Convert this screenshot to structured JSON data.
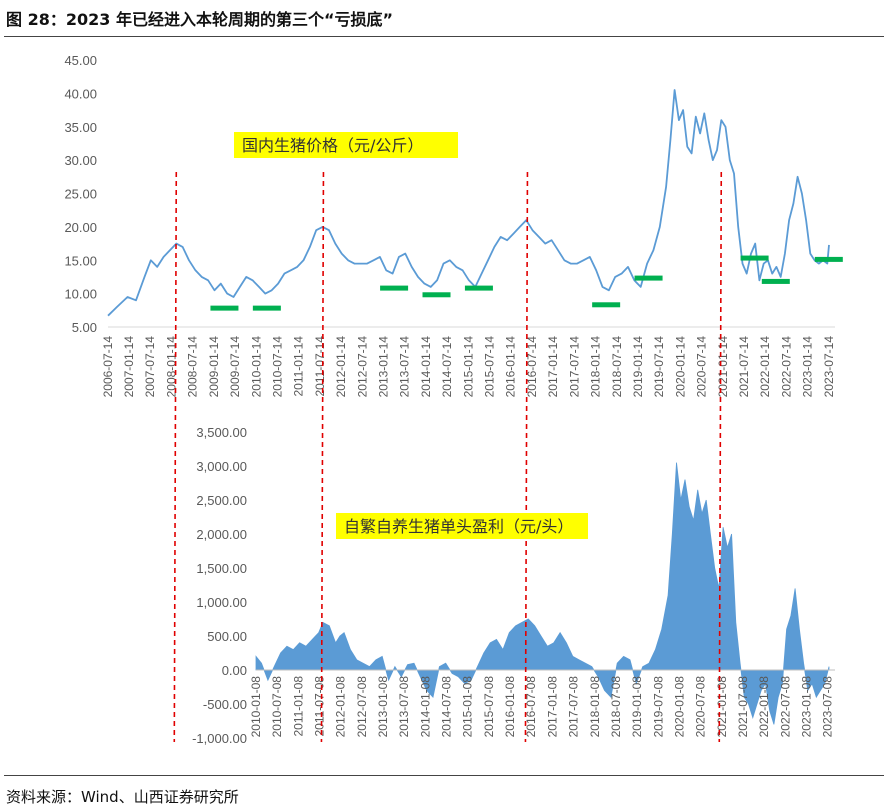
{
  "figure": {
    "title": "图 28：2023 年已经进入本轮周期的第三个“亏损底”",
    "source": "资料来源：Wind、山西证券研究所"
  },
  "colors": {
    "line": "#5b9bd5",
    "area": "#5b9bd5",
    "marker": "#00b050",
    "divider": "#e00000",
    "highlight": "#ffff00"
  },
  "chart_data": [
    {
      "type": "line",
      "annotation": "国内生猪价格（元/公斤）",
      "ylim": [
        5,
        45
      ],
      "yticks": [
        "5.00",
        "10.00",
        "15.00",
        "20.00",
        "25.00",
        "30.00",
        "35.00",
        "40.00",
        "45.00"
      ],
      "xticks": [
        "2006-07-14",
        "2007-01-14",
        "2007-07-14",
        "2008-01-14",
        "2008-07-14",
        "2009-01-14",
        "2009-07-14",
        "2010-01-14",
        "2010-07-14",
        "2011-01-14",
        "2011-07-14",
        "2012-01-14",
        "2012-07-14",
        "2013-01-14",
        "2013-07-14",
        "2014-01-14",
        "2014-07-14",
        "2015-01-14",
        "2015-07-14",
        "2016-01-14",
        "2016-07-14",
        "2017-01-14",
        "2017-07-14",
        "2018-01-14",
        "2018-07-14",
        "2019-01-14",
        "2019-07-14",
        "2020-01-14",
        "2020-07-14",
        "2021-01-14",
        "2021-07-14",
        "2022-01-14",
        "2022-07-14",
        "2023-01-14",
        "2023-07-14"
      ],
      "series": [
        {
          "x": [
            2006.54,
            2006.75,
            2007.0,
            2007.2,
            2007.4,
            2007.55,
            2007.7,
            2007.85,
            2008.0,
            2008.15,
            2008.3,
            2008.45,
            2008.6,
            2008.75,
            2008.9,
            2009.05,
            2009.2,
            2009.35,
            2009.5,
            2009.65,
            2009.8,
            2009.95,
            2010.1,
            2010.25,
            2010.4,
            2010.55,
            2010.7,
            2010.85,
            2011.0,
            2011.15,
            2011.3,
            2011.45,
            2011.6,
            2011.75,
            2011.9,
            2012.05,
            2012.2,
            2012.35,
            2012.5,
            2012.65,
            2012.8,
            2012.95,
            2013.1,
            2013.25,
            2013.4,
            2013.55,
            2013.7,
            2013.85,
            2014.0,
            2014.15,
            2014.3,
            2014.45,
            2014.6,
            2014.75,
            2014.9,
            2015.05,
            2015.2,
            2015.35,
            2015.5,
            2015.65,
            2015.8,
            2015.95,
            2016.1,
            2016.25,
            2016.4,
            2016.55,
            2016.7,
            2016.85,
            2017.0,
            2017.15,
            2017.3,
            2017.45,
            2017.6,
            2017.75,
            2017.9,
            2018.05,
            2018.2,
            2018.35,
            2018.5,
            2018.65,
            2018.8,
            2018.95,
            2019.1,
            2019.25,
            2019.4,
            2019.55,
            2019.7,
            2019.8,
            2019.9,
            2020.0,
            2020.1,
            2020.2,
            2020.3,
            2020.4,
            2020.5,
            2020.6,
            2020.7,
            2020.8,
            2020.9,
            2021.0,
            2021.1,
            2021.2,
            2021.3,
            2021.4,
            2021.5,
            2021.6,
            2021.7,
            2021.8,
            2021.9,
            2022.0,
            2022.1,
            2022.2,
            2022.3,
            2022.4,
            2022.5,
            2022.6,
            2022.7,
            2022.8,
            2022.9,
            2023.0,
            2023.1,
            2023.2,
            2023.3,
            2023.4,
            2023.5,
            2023.54
          ],
          "y": [
            6.7,
            8.0,
            9.5,
            9.0,
            12.5,
            15.0,
            14.0,
            15.5,
            16.5,
            17.5,
            17.0,
            15.0,
            13.5,
            12.5,
            12.0,
            10.5,
            11.5,
            10.0,
            9.5,
            11.0,
            12.5,
            12.0,
            11.0,
            10.0,
            10.5,
            11.5,
            13.0,
            13.5,
            14.0,
            15.0,
            17.0,
            19.5,
            20.0,
            19.5,
            17.5,
            16.0,
            15.0,
            14.5,
            14.5,
            14.5,
            15.0,
            15.5,
            13.5,
            13.0,
            15.5,
            16.0,
            14.0,
            12.5,
            11.5,
            11.0,
            12.0,
            14.5,
            15.0,
            14.0,
            13.5,
            12.0,
            11.0,
            13.0,
            15.0,
            17.0,
            18.5,
            18.0,
            19.0,
            20.0,
            21.0,
            19.5,
            18.5,
            17.5,
            18.0,
            16.5,
            15.0,
            14.5,
            14.5,
            15.0,
            15.5,
            13.5,
            11.0,
            10.5,
            12.5,
            13.0,
            14.0,
            12.0,
            11.0,
            14.5,
            16.5,
            20.0,
            26.0,
            33.0,
            40.5,
            36.0,
            37.5,
            32.0,
            31.0,
            36.5,
            34.0,
            37.0,
            33.0,
            30.0,
            31.5,
            36.0,
            35.0,
            30.0,
            28.0,
            20.0,
            14.5,
            13.0,
            16.0,
            17.5,
            12.0,
            14.5,
            15.0,
            13.0,
            14.0,
            12.5,
            16.0,
            21.0,
            23.5,
            27.5,
            25.0,
            21.0,
            16.0,
            15.0,
            14.5,
            15.0,
            14.5,
            17.3
          ]
        }
      ],
      "lows": [
        [
          "2009-01",
          "2009-07"
        ],
        [
          "2010-01",
          "2010-07"
        ],
        [
          "2013-01",
          "2013-07"
        ],
        [
          "2014-01",
          "2014-07"
        ],
        [
          "2015-01",
          "2015-07"
        ],
        [
          "2018-01",
          "2018-07"
        ],
        [
          "2019-01",
          "2019-07"
        ],
        [
          "2021-07",
          "2022-01"
        ],
        [
          "2022-01",
          "2022-07"
        ],
        [
          "2023-07",
          "2023-07"
        ]
      ]
    },
    {
      "type": "area",
      "annotation": "自繁自养生猪单头盈利（元/头）",
      "ylim": [
        -1000,
        3500
      ],
      "yticks": [
        "-1,000.00",
        "-500.00",
        "0.00",
        "500.00",
        "1,000.00",
        "1,500.00",
        "2,000.00",
        "2,500.00",
        "3,000.00",
        "3,500.00"
      ],
      "xticks": [
        "2010-01-08",
        "2010-07-08",
        "2011-01-08",
        "2011-07-08",
        "2012-01-08",
        "2012-07-08",
        "2013-01-08",
        "2013-07-08",
        "2014-01-08",
        "2014-07-08",
        "2015-01-08",
        "2015-07-08",
        "2016-01-08",
        "2016-07-08",
        "2017-01-08",
        "2017-07-08",
        "2018-01-08",
        "2018-07-08",
        "2019-01-08",
        "2019-07-08",
        "2020-01-08",
        "2020-07-08",
        "2021-01-08",
        "2021-07-08",
        "2022-01-08",
        "2022-07-08",
        "2023-01-08",
        "2023-07-08"
      ],
      "series": [
        {
          "x": [
            2010.02,
            2010.15,
            2010.3,
            2010.45,
            2010.6,
            2010.75,
            2010.9,
            2011.05,
            2011.2,
            2011.35,
            2011.5,
            2011.6,
            2011.75,
            2011.9,
            2012.0,
            2012.1,
            2012.25,
            2012.4,
            2012.55,
            2012.7,
            2012.85,
            2013.0,
            2013.15,
            2013.3,
            2013.45,
            2013.6,
            2013.75,
            2013.9,
            2014.05,
            2014.2,
            2014.35,
            2014.5,
            2014.65,
            2014.8,
            2014.95,
            2015.1,
            2015.25,
            2015.4,
            2015.55,
            2015.7,
            2015.85,
            2016.0,
            2016.15,
            2016.3,
            2016.45,
            2016.6,
            2016.75,
            2016.9,
            2017.05,
            2017.2,
            2017.35,
            2017.5,
            2017.65,
            2017.8,
            2017.95,
            2018.1,
            2018.25,
            2018.4,
            2018.55,
            2018.7,
            2018.85,
            2019.0,
            2019.15,
            2019.3,
            2019.45,
            2019.6,
            2019.75,
            2019.85,
            2019.95,
            2020.05,
            2020.15,
            2020.25,
            2020.35,
            2020.45,
            2020.55,
            2020.65,
            2020.75,
            2020.85,
            2020.95,
            2021.05,
            2021.15,
            2021.25,
            2021.35,
            2021.45,
            2021.55,
            2021.65,
            2021.75,
            2021.85,
            2021.95,
            2022.05,
            2022.15,
            2022.25,
            2022.35,
            2022.45,
            2022.55,
            2022.65,
            2022.75,
            2022.85,
            2022.95,
            2023.05,
            2023.15,
            2023.25,
            2023.35,
            2023.45,
            2023.55
          ],
          "y": [
            200,
            100,
            -150,
            50,
            250,
            350,
            300,
            400,
            350,
            450,
            550,
            700,
            650,
            400,
            500,
            550,
            300,
            150,
            100,
            50,
            150,
            200,
            -150,
            50,
            -100,
            80,
            100,
            -100,
            -300,
            -400,
            50,
            100,
            -50,
            -100,
            -200,
            -150,
            50,
            250,
            400,
            450,
            300,
            550,
            650,
            700,
            750,
            650,
            500,
            350,
            400,
            550,
            400,
            200,
            150,
            100,
            50,
            -100,
            -300,
            -400,
            100,
            200,
            150,
            -200,
            50,
            100,
            300,
            600,
            1100,
            2000,
            3050,
            2500,
            2800,
            2400,
            2200,
            2650,
            2300,
            2500,
            2000,
            1500,
            1200,
            2100,
            1800,
            2000,
            700,
            100,
            -400,
            -500,
            -700,
            -500,
            -300,
            -200,
            -600,
            -800,
            -400,
            -200,
            600,
            800,
            1200,
            600,
            100,
            -300,
            -200,
            -400,
            -300,
            -200,
            50
          ]
        }
      ]
    }
  ]
}
